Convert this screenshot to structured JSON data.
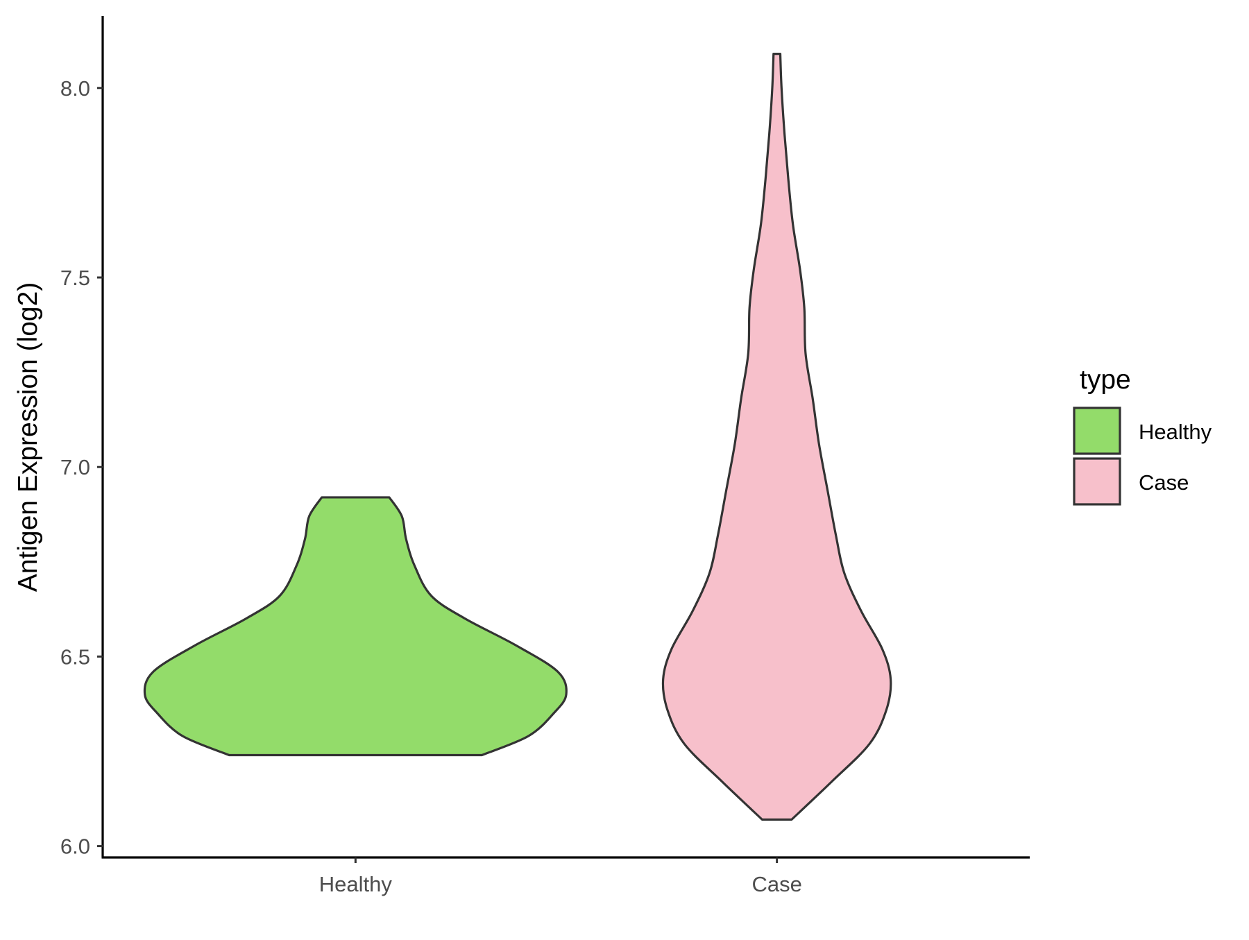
{
  "chart_data": {
    "type": "violin",
    "title": "",
    "xlabel": "",
    "ylabel": "Antigen Expression (log2)",
    "ylim": [
      5.97,
      8.19
    ],
    "yticks": [
      6.0,
      6.5,
      7.0,
      7.5,
      8.0
    ],
    "ytick_labels": [
      "6.0",
      "6.5",
      "7.0",
      "7.5",
      "8.0"
    ],
    "categories": [
      "Healthy",
      "Case"
    ],
    "grid": false,
    "legend": {
      "title": "type",
      "placement": "right",
      "items": [
        {
          "label": "Healthy",
          "color": "#93dc6a"
        },
        {
          "label": "Case",
          "color": "#f7c0cb"
        }
      ]
    },
    "outline_color": "#333333",
    "series": [
      {
        "category": "Healthy",
        "color": "#93dc6a",
        "min": 6.24,
        "max": 6.92,
        "density_profile": [
          {
            "y": 6.24,
            "half_width": 0.3
          },
          {
            "y": 6.29,
            "half_width": 0.41
          },
          {
            "y": 6.35,
            "half_width": 0.47
          },
          {
            "y": 6.4,
            "half_width": 0.5
          },
          {
            "y": 6.46,
            "half_width": 0.48
          },
          {
            "y": 6.53,
            "half_width": 0.38
          },
          {
            "y": 6.6,
            "half_width": 0.26
          },
          {
            "y": 6.66,
            "half_width": 0.18
          },
          {
            "y": 6.74,
            "half_width": 0.14
          },
          {
            "y": 6.81,
            "half_width": 0.12
          },
          {
            "y": 6.87,
            "half_width": 0.11
          },
          {
            "y": 6.92,
            "half_width": 0.08
          }
        ]
      },
      {
        "category": "Case",
        "color": "#f7c0cb",
        "min": 6.07,
        "max": 8.09,
        "density_profile": [
          {
            "y": 6.07,
            "half_width": 0.035
          },
          {
            "y": 6.17,
            "half_width": 0.13
          },
          {
            "y": 6.27,
            "half_width": 0.22
          },
          {
            "y": 6.36,
            "half_width": 0.26
          },
          {
            "y": 6.44,
            "half_width": 0.27
          },
          {
            "y": 6.52,
            "half_width": 0.25
          },
          {
            "y": 6.62,
            "half_width": 0.2
          },
          {
            "y": 6.72,
            "half_width": 0.16
          },
          {
            "y": 6.82,
            "half_width": 0.14
          },
          {
            "y": 6.94,
            "half_width": 0.12
          },
          {
            "y": 7.06,
            "half_width": 0.1
          },
          {
            "y": 7.18,
            "half_width": 0.085
          },
          {
            "y": 7.3,
            "half_width": 0.068
          },
          {
            "y": 7.42,
            "half_width": 0.065
          },
          {
            "y": 7.52,
            "half_width": 0.055
          },
          {
            "y": 7.64,
            "half_width": 0.038
          },
          {
            "y": 7.76,
            "half_width": 0.027
          },
          {
            "y": 7.88,
            "half_width": 0.018
          },
          {
            "y": 8.0,
            "half_width": 0.011
          },
          {
            "y": 8.09,
            "half_width": 0.008
          }
        ]
      }
    ]
  }
}
